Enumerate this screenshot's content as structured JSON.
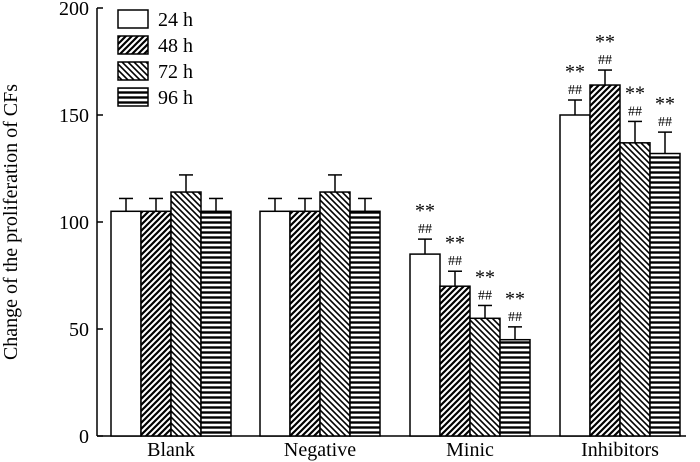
{
  "chart_data": {
    "type": "bar",
    "title": "",
    "xlabel": "",
    "ylabel": "Change of the proliferation of CFs",
    "ylim": [
      0,
      200
    ],
    "yticks": [
      0,
      50,
      100,
      150,
      200
    ],
    "grid": false,
    "legend_position": "top-left",
    "categories": [
      "Blank",
      "Negative",
      "Minic",
      "Inhibitors"
    ],
    "series": [
      {
        "name": "24 h",
        "pattern": "white",
        "values": [
          105,
          105,
          85,
          150
        ],
        "errors": [
          6,
          6,
          7,
          7
        ],
        "annotations": [
          "",
          "",
          "**|##",
          "**|##"
        ]
      },
      {
        "name": "48 h",
        "pattern": "diagonal-up",
        "values": [
          105,
          105,
          70,
          164
        ],
        "errors": [
          6,
          6,
          7,
          7
        ],
        "annotations": [
          "",
          "",
          "**|##",
          "**|##"
        ]
      },
      {
        "name": "72 h",
        "pattern": "diagonal-down",
        "values": [
          114,
          114,
          55,
          137
        ],
        "errors": [
          8,
          8,
          6,
          10
        ],
        "annotations": [
          "",
          "",
          "**|##",
          "**|##"
        ]
      },
      {
        "name": "96 h",
        "pattern": "horizontal",
        "values": [
          105,
          105,
          45,
          132
        ],
        "errors": [
          6,
          6,
          6,
          10
        ],
        "annotations": [
          "",
          "",
          "**|##",
          "**|##"
        ]
      }
    ]
  }
}
